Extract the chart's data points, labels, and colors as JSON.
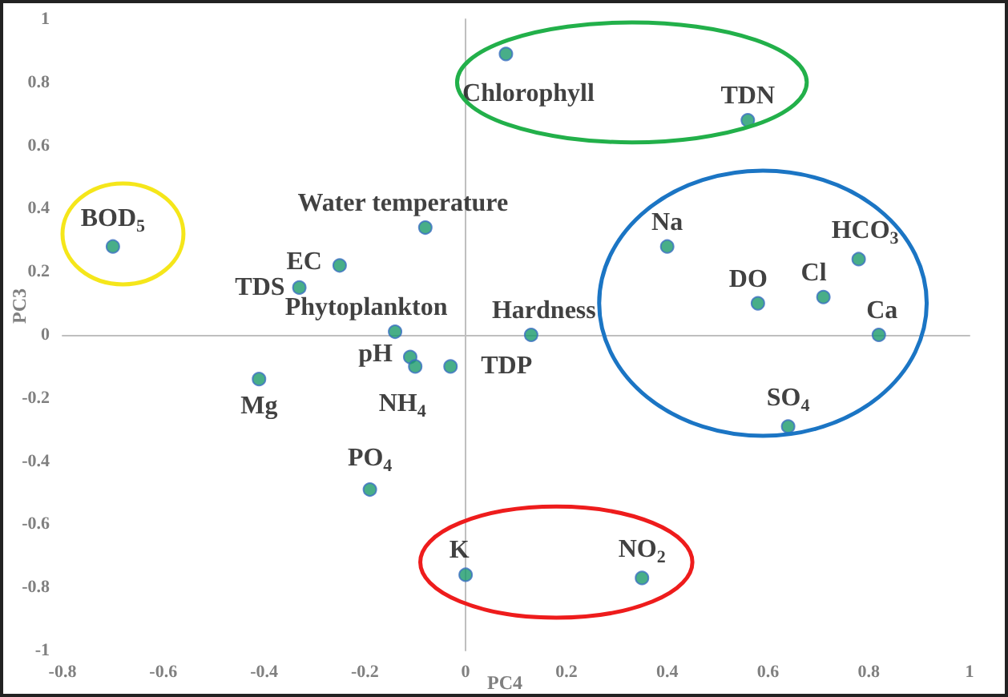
{
  "chart_data": {
    "type": "scatter",
    "xlabel": "PC4",
    "ylabel": "PC3",
    "x": [
      0.08,
      0.56,
      -0.7,
      -0.08,
      -0.25,
      -0.33,
      -0.14,
      0.13,
      0.4,
      0.78,
      0.58,
      0.71,
      0.82,
      -0.11,
      -0.1,
      -0.03,
      -0.41,
      -0.19,
      0.0,
      0.64,
      0.35
    ],
    "values": [
      0.89,
      0.68,
      0.28,
      0.34,
      0.22,
      0.15,
      0.01,
      0.0,
      0.28,
      0.24,
      0.1,
      0.12,
      0.0,
      -0.07,
      -0.1,
      -0.1,
      -0.14,
      -0.49,
      -0.76,
      -0.29,
      -0.77
    ],
    "color": "#1a9a6a",
    "marker": "circle",
    "xlim": [
      -0.8,
      1
    ],
    "xticks": [
      -0.8,
      -0.6,
      -0.4,
      -0.2,
      0,
      0.2,
      0.4,
      0.6,
      0.8,
      1
    ],
    "ylim": [
      -1,
      1
    ],
    "yticks": [
      -1,
      -0.8,
      -0.6,
      -0.4,
      -0.2,
      0,
      0.2,
      0.4,
      0.6,
      0.8,
      1
    ],
    "annotations": [
      {
        "text": "Chlorophyll",
        "x": 0.08,
        "y": 0.89
      },
      {
        "text": "TDN",
        "x": 0.56,
        "y": 0.68
      },
      {
        "text": "BOD$_{5}$",
        "x": -0.7,
        "y": 0.28
      },
      {
        "text": "Water temperature",
        "x": -0.08,
        "y": 0.34
      },
      {
        "text": "EC",
        "x": -0.25,
        "y": 0.22
      },
      {
        "text": "TDS",
        "x": -0.33,
        "y": 0.15
      },
      {
        "text": "Phytoplankton",
        "x": -0.14,
        "y": 0.01
      },
      {
        "text": "Hardness",
        "x": 0.13,
        "y": 0.0
      },
      {
        "text": "Na",
        "x": 0.4,
        "y": 0.28
      },
      {
        "text": "HCO$_{3}$",
        "x": 0.78,
        "y": 0.24
      },
      {
        "text": "DO",
        "x": 0.58,
        "y": 0.1
      },
      {
        "text": "Cl",
        "x": 0.71,
        "y": 0.12
      },
      {
        "text": "Ca",
        "x": 0.82,
        "y": 0.0
      },
      {
        "text": "pH",
        "x": -0.11,
        "y": -0.07
      },
      {
        "text": "NH$_{4}$",
        "x": -0.1,
        "y": -0.1
      },
      {
        "text": "TDP",
        "x": -0.03,
        "y": -0.1
      },
      {
        "text": "Mg",
        "x": -0.41,
        "y": -0.14
      },
      {
        "text": "PO$_{4}$",
        "x": -0.19,
        "y": -0.49
      },
      {
        "text": "K",
        "x": 0.0,
        "y": -0.76
      },
      {
        "text": "SO$_{4}$",
        "x": 0.64,
        "y": -0.29
      },
      {
        "text": "NO$_{2}$",
        "x": 0.35,
        "y": -0.77
      }
    ]
  }
}
